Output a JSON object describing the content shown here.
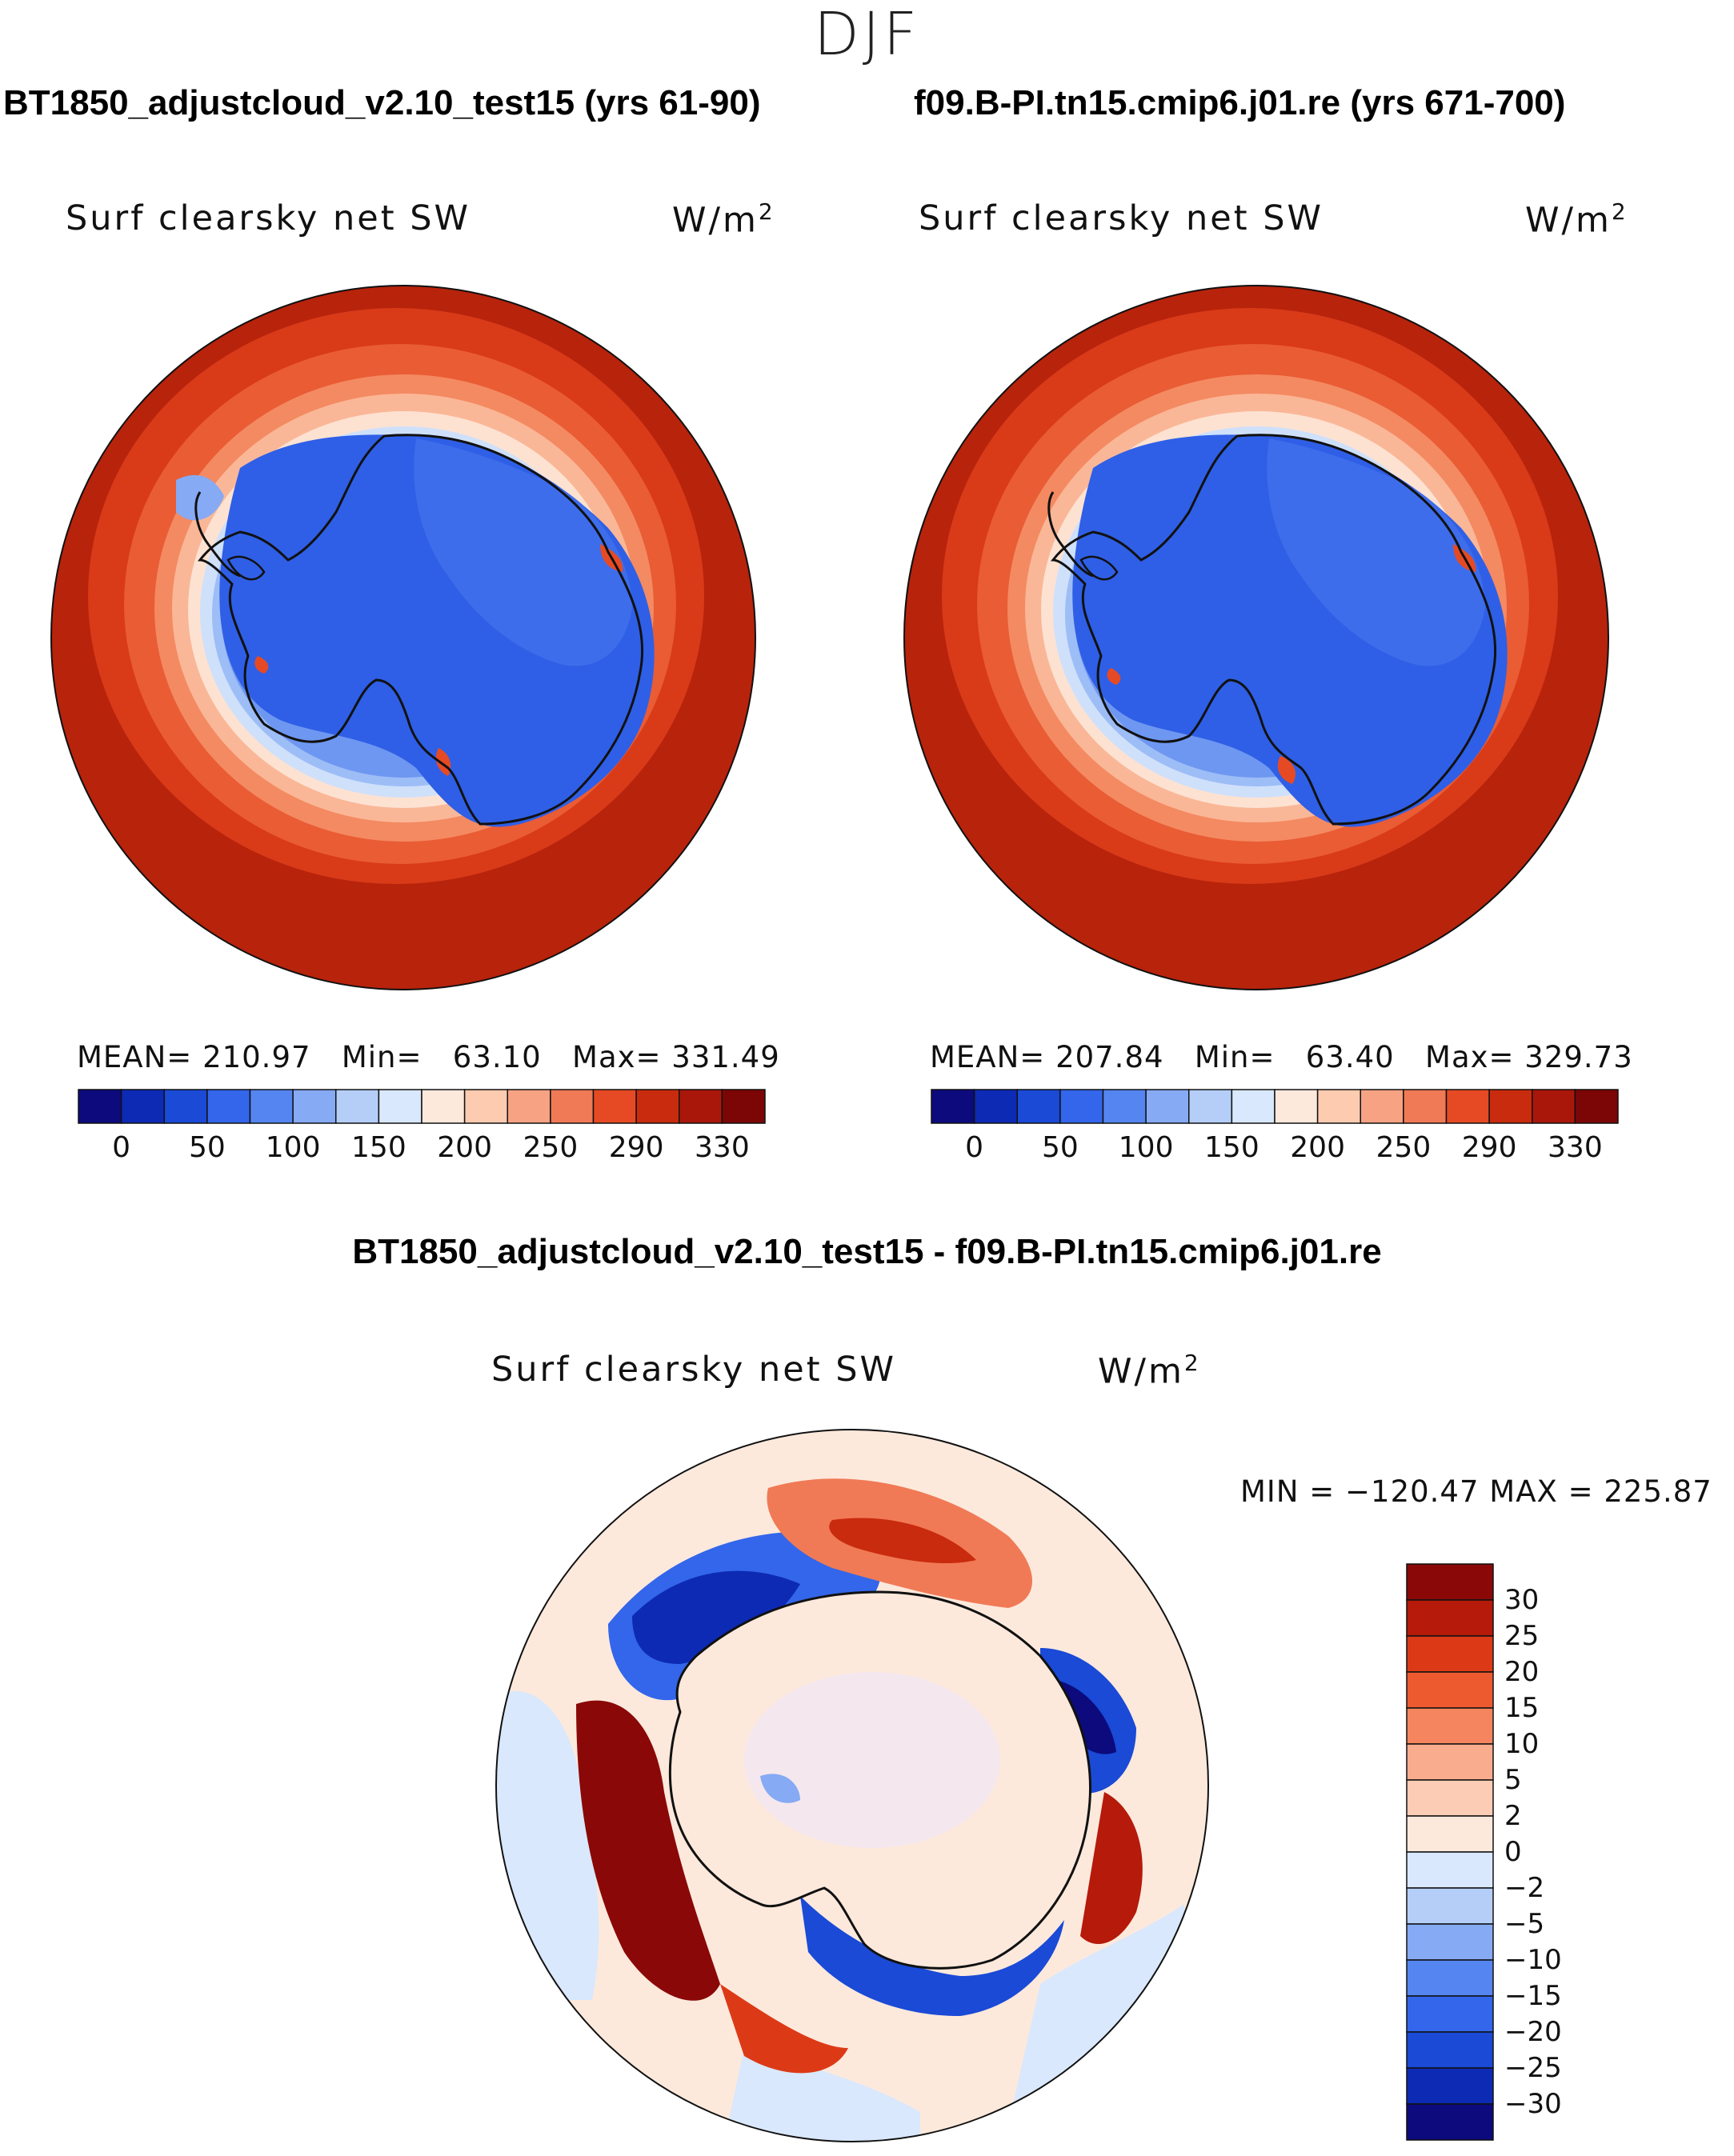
{
  "season": "DJF",
  "panels": [
    {
      "run_title": "BT1850_adjustcloud_v2.10_test15 (yrs 61-90)",
      "variable": "Surf clearsky net SW",
      "units_base": "W/m",
      "units_exp": "2",
      "stats": {
        "mean_label": "MEAN=",
        "mean": "210.97",
        "min_label": "Min=",
        "min": "63.10",
        "max_label": "Max=",
        "max": "331.49"
      }
    },
    {
      "run_title": "f09.B-PI.tn15.cmip6.j01.re (yrs 671-700)",
      "variable": "Surf clearsky net SW",
      "units_base": "W/m",
      "units_exp": "2",
      "stats": {
        "mean_label": "MEAN=",
        "mean": "207.84",
        "min_label": "Min=",
        "min": "63.40",
        "max_label": "Max=",
        "max": "329.73"
      }
    }
  ],
  "diff_panel": {
    "title": "BT1850_adjustcloud_v2.10_test15 - f09.B-PI.tn15.cmip6.j01.re",
    "variable": "Surf clearsky net SW",
    "units_base": "W/m",
    "units_exp": "2",
    "minmax": "MIN = −120.47  MAX = 225.87"
  },
  "chart_data": [
    {
      "type": "heatmap",
      "projection": "south polar stereographic",
      "title": "Surf clearsky net SW (BT1850_adjustcloud_v2.10_test15, yrs 61-90)",
      "units": "W/m2",
      "mean": 210.97,
      "min": 63.1,
      "max": 331.49,
      "colorbar_ticks": [
        "0",
        "50",
        "100",
        "150",
        "200",
        "250",
        "290",
        "330"
      ],
      "colors": [
        "#0c0a7c",
        "#0d2ab4",
        "#1a4ad6",
        "#3366ea",
        "#5585f0",
        "#86aaf4",
        "#b4cef8",
        "#d9e8fc",
        "#fde9dc",
        "#fccbb0",
        "#f7a383",
        "#f07a55",
        "#e64a24",
        "#c92b0e",
        "#a8170a",
        "#7c0606"
      ]
    },
    {
      "type": "heatmap",
      "projection": "south polar stereographic",
      "title": "Surf clearsky net SW (f09.B-PI.tn15.cmip6.j01.re, yrs 671-700)",
      "units": "W/m2",
      "mean": 207.84,
      "min": 63.4,
      "max": 329.73,
      "colorbar_ticks": [
        "0",
        "50",
        "100",
        "150",
        "200",
        "250",
        "290",
        "330"
      ],
      "colors": [
        "#0c0a7c",
        "#0d2ab4",
        "#1a4ad6",
        "#3366ea",
        "#5585f0",
        "#86aaf4",
        "#b4cef8",
        "#d9e8fc",
        "#fde9dc",
        "#fccbb0",
        "#f7a383",
        "#f07a55",
        "#e64a24",
        "#c92b0e",
        "#a8170a",
        "#7c0606"
      ]
    },
    {
      "type": "heatmap",
      "projection": "south polar stereographic",
      "title": "Difference: Surf clearsky net SW",
      "units": "W/m2",
      "min": -120.47,
      "max": 225.87,
      "colorbar_ticks": [
        "30",
        "25",
        "20",
        "15",
        "10",
        "5",
        "2",
        "0",
        "−2",
        "−5",
        "−10",
        "−15",
        "−20",
        "−25",
        "−30"
      ],
      "colors": [
        "#8a0808",
        "#b51a0a",
        "#dc3a17",
        "#ee5a30",
        "#f5855e",
        "#f9ad8e",
        "#fcccb4",
        "#fde9dc",
        "#d9e8fc",
        "#b4cef8",
        "#86aaf4",
        "#5585f0",
        "#3366ea",
        "#1a4ad6",
        "#0d2ab4",
        "#0c0a7c"
      ]
    }
  ]
}
